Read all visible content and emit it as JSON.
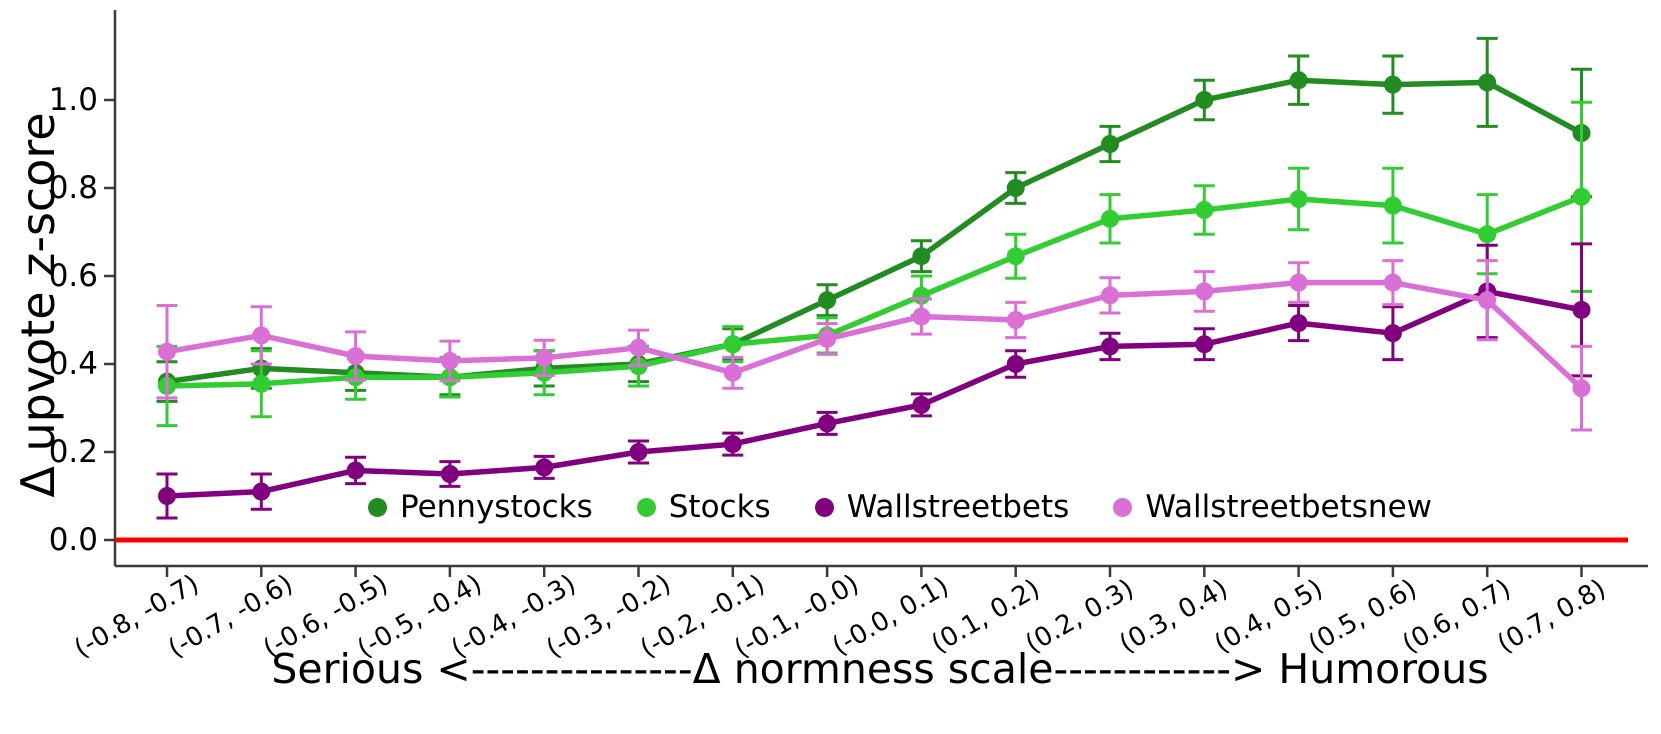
{
  "chart_data": {
    "type": "line",
    "title": "",
    "y_label": "Δ upvote z-score",
    "x_label": "Serious <---------------Δ normness scale------------> Humorous",
    "categories": [
      "(-0.8, -0.7)",
      "(-0.7, -0.6)",
      "(-0.6, -0.5)",
      "(-0.5, -0.4)",
      "(-0.4, -0.3)",
      "(-0.3, -0.2)",
      "(-0.2, -0.1)",
      "(-0.1, -0.0)",
      "(-0.0, 0.1)",
      "(0.1, 0.2)",
      "(0.2, 0.3)",
      "(0.3, 0.4)",
      "(0.4, 0.5)",
      "(0.5, 0.6)",
      "(0.6, 0.7)",
      "(0.7, 0.8)"
    ],
    "y_ticks": [
      "0.0",
      "0.2",
      "0.4",
      "0.6",
      "0.8",
      "1.0"
    ],
    "ylim": [
      -0.06,
      1.2
    ],
    "grid": false,
    "legend_position": "lower center inside",
    "zero_line": {
      "value": 0.0,
      "color": "#ff0000"
    },
    "axis_color": "#3a3a3a",
    "series": [
      {
        "name": "Pennystocks",
        "color": "#228B22",
        "values": [
          0.36,
          0.39,
          0.38,
          0.37,
          0.39,
          0.4,
          0.445,
          0.545,
          0.645,
          0.8,
          0.9,
          1.0,
          1.045,
          1.035,
          1.04,
          0.925
        ],
        "errors": [
          0.045,
          0.045,
          0.04,
          0.04,
          0.04,
          0.04,
          0.035,
          0.035,
          0.035,
          0.035,
          0.04,
          0.045,
          0.055,
          0.065,
          0.1,
          0.145
        ]
      },
      {
        "name": "Stocks",
        "color": "#32CD32",
        "values": [
          0.35,
          0.355,
          0.37,
          0.37,
          0.38,
          0.395,
          0.445,
          0.465,
          0.555,
          0.645,
          0.73,
          0.75,
          0.775,
          0.76,
          0.695,
          0.78
        ],
        "errors": [
          0.09,
          0.075,
          0.05,
          0.045,
          0.05,
          0.045,
          0.04,
          0.04,
          0.045,
          0.05,
          0.055,
          0.055,
          0.07,
          0.085,
          0.09,
          0.215
        ]
      },
      {
        "name": "Wallstreetbets",
        "color": "#800080",
        "values": [
          0.1,
          0.11,
          0.158,
          0.15,
          0.165,
          0.2,
          0.218,
          0.265,
          0.307,
          0.4,
          0.44,
          0.445,
          0.493,
          0.47,
          0.565,
          0.523
        ],
        "errors": [
          0.05,
          0.04,
          0.03,
          0.028,
          0.025,
          0.025,
          0.025,
          0.025,
          0.025,
          0.03,
          0.03,
          0.035,
          0.04,
          0.06,
          0.105,
          0.15
        ]
      },
      {
        "name": "Wallstreetbetsnew",
        "color": "#DA70D6",
        "values": [
          0.428,
          0.465,
          0.418,
          0.407,
          0.414,
          0.437,
          0.38,
          0.457,
          0.508,
          0.5,
          0.556,
          0.565,
          0.585,
          0.585,
          0.545,
          0.345
        ],
        "errors": [
          0.105,
          0.065,
          0.055,
          0.045,
          0.04,
          0.04,
          0.035,
          0.035,
          0.04,
          0.04,
          0.04,
          0.045,
          0.045,
          0.05,
          0.09,
          0.095
        ]
      }
    ]
  }
}
